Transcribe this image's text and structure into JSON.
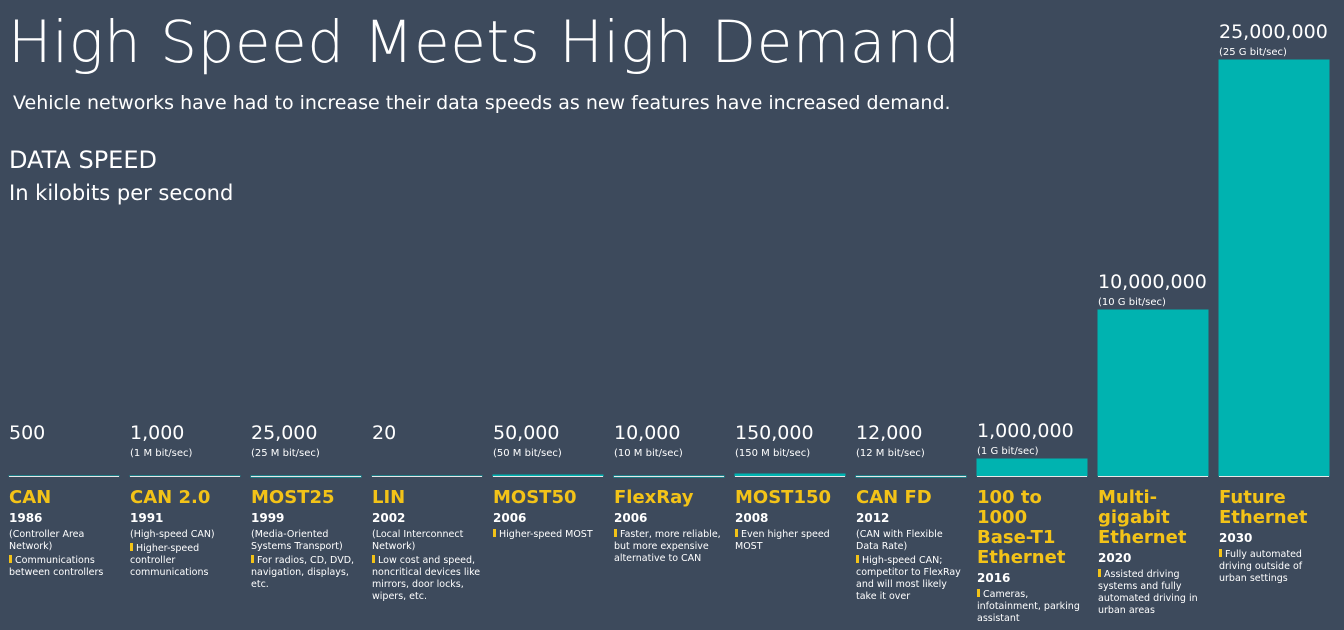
{
  "chart_data": {
    "type": "bar",
    "title": "High Speed Meets High Demand",
    "subtitle": "Vehicle networks have had to increase their data speeds as new features have increased demand.",
    "axis_title": "DATA SPEED",
    "axis_subtitle": "In kilobits per second",
    "color": "#00b3b0",
    "categories": [
      "CAN",
      "CAN 2.0",
      "MOST25",
      "LIN",
      "MOST50",
      "FlexRay",
      "MOST150",
      "CAN FD",
      "100 to 1000 Base-T1 Ethernet",
      "Multi-gigabit Ethernet",
      "Future Ethernet"
    ],
    "values": [
      500,
      1000,
      25000,
      20,
      50000,
      10000,
      150000,
      12000,
      1000000,
      10000000,
      25000000
    ],
    "value_labels": [
      "500",
      "1,000",
      "25,000",
      "20",
      "50,000",
      "10,000",
      "150,000",
      "12,000",
      "1,000,000",
      "10,000,000",
      "25,000,000"
    ],
    "items": [
      {
        "year": "1986",
        "note": "(Controller Area Network)",
        "description": "Communications between controllers"
      },
      {
        "speed_note": "(1 M bit/sec)",
        "year": "1991",
        "note": "(High-speed CAN)",
        "description": "Higher-speed controller communications"
      },
      {
        "speed_note": "(25 M bit/sec)",
        "year": "1999",
        "note": "(Media-Oriented Systems Transport)",
        "description": "For radios, CD, DVD, navigation, displays, etc."
      },
      {
        "year": "2002",
        "note": "(Local Interconnect Network)",
        "description": "Low cost and speed, noncritical devices like mirrors, door locks, wipers, etc."
      },
      {
        "speed_note": "(50 M bit/sec)",
        "year": "2006",
        "description": "Higher-speed MOST"
      },
      {
        "speed_note": "(10 M bit/sec)",
        "year": "2006",
        "description": "Faster, more reliable, but more expensive alternative to CAN"
      },
      {
        "speed_note": "(150 M bit/sec)",
        "year": "2008",
        "description": "Even higher speed MOST"
      },
      {
        "speed_note": "(12 M bit/sec)",
        "year": "2012",
        "note": "(CAN with Flexible Data Rate)",
        "description": "High-speed CAN; competitor to FlexRay and will most likely take it over"
      },
      {
        "speed_note": "(1 G bit/sec)",
        "year": "2016",
        "description": "Cameras, infotainment, parking assistant"
      },
      {
        "speed_note": "(10 G bit/sec)",
        "year": "2020",
        "description": "Assisted driving systems and fully automated driving in urban areas"
      },
      {
        "speed_note": "(25 G bit/sec)",
        "year": "2030",
        "description": "Fully automated driving outside of urban settings"
      }
    ]
  }
}
